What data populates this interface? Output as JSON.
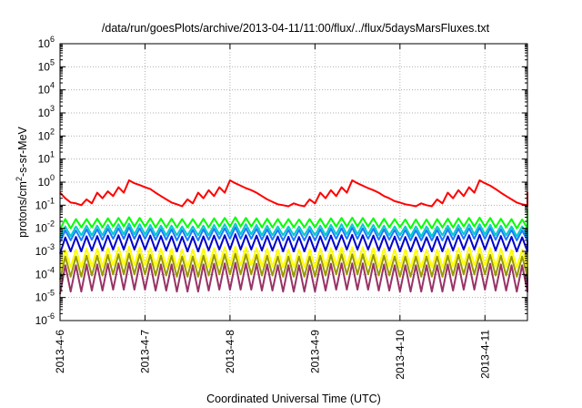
{
  "chart_data": {
    "type": "line",
    "title": "/data/run/goesPlots/archive/2013-04-11/11:00/flux/../flux/5daysMarsFluxes.txt",
    "xlabel": "Coordinated Universal Time (UTC)",
    "ylabel_parts": [
      "protons/cm",
      "2",
      "-s-sr-MeV"
    ],
    "yscale": "log",
    "ylim_exp": [
      -6,
      6
    ],
    "y_tick_base": "10",
    "y_tick_exponents": [
      "-6",
      "-5",
      "-4",
      "-3",
      "-2",
      "-1",
      "0",
      "1",
      "2",
      "3",
      "4",
      "5",
      "6"
    ],
    "xlim": [
      "2013-04-06T00:00",
      "2013-04-11T12:00"
    ],
    "x_ticks": [
      "2013-4-6",
      "2013-4-7",
      "2013-4-8",
      "2013-4-9",
      "2013-4-10",
      "2013-4-11"
    ],
    "grid": true,
    "legend": "none",
    "sawtooth_period_hours": 3,
    "series": [
      {
        "color": "#ff0000",
        "values": [
          0.35,
          0.2,
          0.13,
          0.12,
          0.1,
          0.18,
          0.12,
          0.35,
          0.2,
          0.4,
          0.25,
          0.6,
          0.35,
          1.2,
          0.9,
          0.75,
          0.6,
          0.5,
          0.35,
          0.25,
          0.18,
          0.13,
          0.11,
          0.09,
          0.18,
          0.12,
          0.35,
          0.2,
          0.45,
          0.25,
          0.6,
          0.35,
          1.2,
          0.9,
          0.7,
          0.55,
          0.45,
          0.35,
          0.25,
          0.18,
          0.14,
          0.11,
          0.1,
          0.09,
          0.12,
          0.1,
          0.09,
          0.18,
          0.12,
          0.35,
          0.2,
          0.45,
          0.25,
          0.6,
          0.35,
          1.2,
          0.9,
          0.7,
          0.55,
          0.45,
          0.35,
          0.25,
          0.2,
          0.15,
          0.13,
          0.11,
          0.1,
          0.09,
          0.12,
          0.1,
          0.09,
          0.18,
          0.12,
          0.35,
          0.2,
          0.45,
          0.25,
          0.6,
          0.35,
          1.2,
          0.9,
          0.7,
          0.5,
          0.35,
          0.25,
          0.18,
          0.13,
          0.11,
          0.1,
          0.09,
          0.1,
          0.35,
          0.3
        ]
      },
      {
        "color": "#00ff00",
        "values": [
          0.009,
          0.025,
          0.01,
          0.025,
          0.011,
          0.025,
          0.011,
          0.026,
          0.011,
          0.027,
          0.012,
          0.028,
          0.012,
          0.03,
          0.012,
          0.028,
          0.012,
          0.027,
          0.011,
          0.026,
          0.011,
          0.026,
          0.011,
          0.025,
          0.011,
          0.025,
          0.011,
          0.026,
          0.011,
          0.027,
          0.012,
          0.028,
          0.012,
          0.03,
          0.012,
          0.028,
          0.012,
          0.027,
          0.011,
          0.026,
          0.011,
          0.025,
          0.011,
          0.025,
          0.011,
          0.024,
          0.011,
          0.025,
          0.011,
          0.026,
          0.011,
          0.027,
          0.012,
          0.028,
          0.012,
          0.029,
          0.012,
          0.028,
          0.012,
          0.027,
          0.011,
          0.026,
          0.011,
          0.025,
          0.011,
          0.024,
          0.01,
          0.024,
          0.01,
          0.024,
          0.01,
          0.025,
          0.011,
          0.026,
          0.011,
          0.027,
          0.012,
          0.028,
          0.012,
          0.029,
          0.012,
          0.028,
          0.011,
          0.026,
          0.011,
          0.025,
          0.01,
          0.024,
          0.01,
          0.023,
          0.01,
          0.065,
          0.06
        ]
      },
      {
        "color": "#00cccc",
        "values": [
          0.004,
          0.012,
          0.0045,
          0.012,
          0.005,
          0.013,
          0.005,
          0.013,
          0.005,
          0.014,
          0.0055,
          0.015,
          0.0055,
          0.016,
          0.0055,
          0.015,
          0.0055,
          0.014,
          0.005,
          0.013,
          0.005,
          0.013,
          0.005,
          0.012,
          0.005,
          0.012,
          0.005,
          0.013,
          0.005,
          0.014,
          0.0055,
          0.015,
          0.0055,
          0.016,
          0.0055,
          0.015,
          0.0055,
          0.014,
          0.005,
          0.013,
          0.005,
          0.012,
          0.005,
          0.012,
          0.005,
          0.012,
          0.005,
          0.012,
          0.005,
          0.013,
          0.005,
          0.014,
          0.0055,
          0.015,
          0.0055,
          0.015,
          0.0055,
          0.015,
          0.0055,
          0.014,
          0.005,
          0.013,
          0.005,
          0.012,
          0.005,
          0.012,
          0.0045,
          0.012,
          0.0045,
          0.012,
          0.0045,
          0.012,
          0.005,
          0.013,
          0.005,
          0.014,
          0.0055,
          0.015,
          0.0055,
          0.015,
          0.0055,
          0.014,
          0.005,
          0.013,
          0.005,
          0.012,
          0.0045,
          0.012,
          0.0045,
          0.011,
          0.0045,
          0.045,
          0.04
        ]
      },
      {
        "color": "#1e7bff",
        "values": [
          0.0025,
          0.008,
          0.003,
          0.008,
          0.003,
          0.009,
          0.0032,
          0.009,
          0.0032,
          0.0095,
          0.0035,
          0.01,
          0.0035,
          0.011,
          0.0035,
          0.01,
          0.0035,
          0.0095,
          0.0032,
          0.009,
          0.0032,
          0.009,
          0.003,
          0.0085,
          0.003,
          0.0085,
          0.003,
          0.009,
          0.0032,
          0.0095,
          0.0035,
          0.01,
          0.0035,
          0.011,
          0.0035,
          0.01,
          0.0035,
          0.0095,
          0.0032,
          0.009,
          0.0032,
          0.0085,
          0.003,
          0.0085,
          0.003,
          0.0085,
          0.003,
          0.0085,
          0.003,
          0.009,
          0.0032,
          0.0095,
          0.0035,
          0.01,
          0.0035,
          0.0105,
          0.0035,
          0.01,
          0.0035,
          0.0095,
          0.0032,
          0.009,
          0.0032,
          0.0085,
          0.003,
          0.0085,
          0.003,
          0.0082,
          0.003,
          0.0082,
          0.003,
          0.0085,
          0.003,
          0.009,
          0.0032,
          0.0095,
          0.0035,
          0.01,
          0.0035,
          0.0105,
          0.0035,
          0.01,
          0.0032,
          0.009,
          0.0032,
          0.0085,
          0.003,
          0.008,
          0.003,
          0.008,
          0.003,
          0.035,
          0.03
        ]
      },
      {
        "color": "#0000cc",
        "values": [
          0.0008,
          0.004,
          0.001,
          0.0042,
          0.001,
          0.0045,
          0.0011,
          0.0046,
          0.0011,
          0.0048,
          0.0012,
          0.005,
          0.0012,
          0.0055,
          0.0012,
          0.005,
          0.0012,
          0.0048,
          0.0011,
          0.0046,
          0.0011,
          0.0045,
          0.001,
          0.0043,
          0.001,
          0.0043,
          0.001,
          0.0045,
          0.0011,
          0.0048,
          0.0012,
          0.005,
          0.0012,
          0.0055,
          0.0012,
          0.005,
          0.0012,
          0.0048,
          0.0011,
          0.0046,
          0.0011,
          0.0044,
          0.001,
          0.0043,
          0.001,
          0.0042,
          0.001,
          0.0043,
          0.001,
          0.0045,
          0.0011,
          0.0048,
          0.0012,
          0.005,
          0.0012,
          0.0052,
          0.0012,
          0.005,
          0.0012,
          0.0048,
          0.0011,
          0.0046,
          0.0011,
          0.0044,
          0.001,
          0.0042,
          0.001,
          0.0041,
          0.001,
          0.0041,
          0.001,
          0.0043,
          0.001,
          0.0045,
          0.0011,
          0.0048,
          0.0012,
          0.005,
          0.0012,
          0.0052,
          0.0012,
          0.005,
          0.0011,
          0.0046,
          0.0011,
          0.0043,
          0.001,
          0.0041,
          0.001,
          0.004,
          0.001,
          0.02,
          0.018
        ]
      },
      {
        "color": "#ffff00",
        "values": [
          0.00015,
          0.0012,
          0.0002,
          0.0012,
          0.0002,
          0.0013,
          0.00022,
          0.0013,
          0.00022,
          0.0014,
          0.00025,
          0.0015,
          0.00025,
          0.0016,
          0.00025,
          0.0015,
          0.00025,
          0.0014,
          0.00022,
          0.0013,
          0.00022,
          0.0013,
          0.0002,
          0.0012,
          0.0002,
          0.0012,
          0.0002,
          0.0013,
          0.00022,
          0.0014,
          0.00025,
          0.0015,
          0.00025,
          0.0016,
          0.00025,
          0.0015,
          0.00025,
          0.0014,
          0.00022,
          0.0013,
          0.00022,
          0.0012,
          0.0002,
          0.0012,
          0.0002,
          0.0012,
          0.0002,
          0.0012,
          0.0002,
          0.0013,
          0.00022,
          0.0014,
          0.00025,
          0.0015,
          0.00025,
          0.0015,
          0.00025,
          0.0015,
          0.00025,
          0.0014,
          0.00022,
          0.0013,
          0.00022,
          0.0012,
          0.0002,
          0.0012,
          0.0002,
          0.0012,
          0.0002,
          0.0012,
          0.0002,
          0.0012,
          0.0002,
          0.0013,
          0.00022,
          0.0014,
          0.00025,
          0.0015,
          0.00025,
          0.0015,
          0.00025,
          0.0014,
          0.00022,
          0.0013,
          0.00022,
          0.0012,
          0.0002,
          0.0012,
          0.0002,
          0.0011,
          0.0002,
          0.001,
          0.0009
        ]
      },
      {
        "color": "#999900",
        "values": [
          6e-05,
          0.0006,
          8e-05,
          0.0006,
          8e-05,
          0.00065,
          9e-05,
          0.00065,
          9e-05,
          0.0007,
          0.0001,
          0.00075,
          0.0001,
          0.0008,
          0.0001,
          0.00075,
          0.0001,
          0.0007,
          9e-05,
          0.00065,
          9e-05,
          0.00065,
          8e-05,
          0.0006,
          8e-05,
          0.0006,
          8e-05,
          0.00065,
          9e-05,
          0.0007,
          0.0001,
          0.00075,
          0.0001,
          0.0008,
          0.0001,
          0.00075,
          0.0001,
          0.0007,
          9e-05,
          0.00065,
          9e-05,
          0.0006,
          8e-05,
          0.0006,
          8e-05,
          0.0006,
          8e-05,
          0.0006,
          8e-05,
          0.00065,
          9e-05,
          0.0007,
          0.0001,
          0.00075,
          0.0001,
          0.00075,
          0.0001,
          0.00075,
          0.0001,
          0.0007,
          9e-05,
          0.00065,
          9e-05,
          0.0006,
          8e-05,
          0.0006,
          8e-05,
          0.0006,
          8e-05,
          0.0006,
          8e-05,
          0.0006,
          8e-05,
          0.00065,
          9e-05,
          0.0007,
          0.0001,
          0.00075,
          0.0001,
          0.00075,
          0.0001,
          0.0007,
          9e-05,
          0.00065,
          9e-05,
          0.0006,
          8e-05,
          0.0006,
          8e-05,
          0.00055,
          8e-05,
          0.0005,
          0.00045
        ]
      },
      {
        "color": "#993366",
        "values": [
          1.4e-05,
          0.00025,
          1.8e-05,
          0.00025,
          1.8e-05,
          0.00027,
          2e-05,
          0.00027,
          2e-05,
          0.00029,
          2.2e-05,
          0.0003,
          2.2e-05,
          0.00032,
          2.2e-05,
          0.0003,
          2.2e-05,
          0.00029,
          2e-05,
          0.00027,
          2e-05,
          0.00027,
          1.8e-05,
          0.00025,
          1.8e-05,
          0.00025,
          1.8e-05,
          0.00027,
          2e-05,
          0.00029,
          2.2e-05,
          0.0003,
          2.2e-05,
          0.00032,
          2.2e-05,
          0.0003,
          2.2e-05,
          0.00029,
          2e-05,
          0.00027,
          2e-05,
          0.00025,
          1.8e-05,
          0.00025,
          1.8e-05,
          0.00025,
          1.8e-05,
          0.00025,
          1.8e-05,
          0.00027,
          2e-05,
          0.00029,
          2.2e-05,
          0.0003,
          2.2e-05,
          0.0003,
          2.2e-05,
          0.0003,
          2.2e-05,
          0.00029,
          2e-05,
          0.00027,
          2e-05,
          0.00025,
          1.8e-05,
          0.00025,
          1.8e-05,
          0.00025,
          1.8e-05,
          0.00025,
          1.8e-05,
          0.00025,
          1.8e-05,
          0.00027,
          2e-05,
          0.00029,
          2.2e-05,
          0.0003,
          2.2e-05,
          0.0003,
          2.2e-05,
          0.00029,
          2e-05,
          0.00027,
          2e-05,
          0.00025,
          1.8e-05,
          0.00025,
          1.8e-05,
          0.00024,
          1.8e-05,
          0.00012,
          0.0001
        ]
      }
    ]
  }
}
